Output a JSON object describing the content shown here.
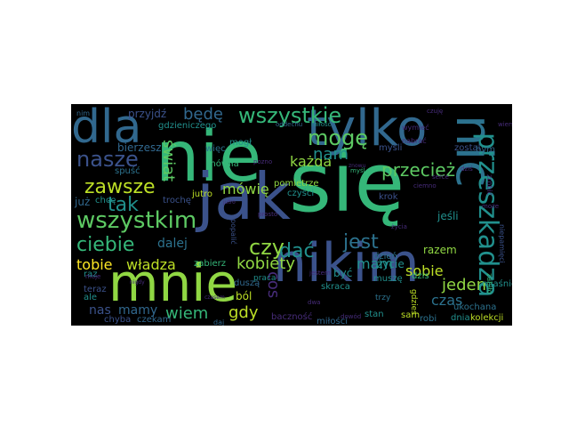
{
  "palette": [
    "#440154",
    "#3b528b",
    "#21908d",
    "#5dc963",
    "#fde725",
    "#2c728e",
    "#35b779",
    "#472c7a",
    "#90d743"
  ],
  "words": [
    {
      "text": "nie",
      "color": "#35b779"
    },
    {
      "text": "się",
      "color": "#35b779"
    },
    {
      "text": "jak",
      "color": "#3b528b"
    },
    {
      "text": "tylko",
      "color": "#31688e"
    },
    {
      "text": "nikim",
      "color": "#3b528b"
    },
    {
      "text": "mnie",
      "color": "#90d743"
    },
    {
      "text": "dla",
      "color": "#31688e"
    },
    {
      "text": "nic",
      "color": "#2c728e"
    },
    {
      "text": "przeszkadza",
      "color": "#21908d"
    },
    {
      "text": "wszystkim",
      "color": "#5dc963"
    },
    {
      "text": "wszystkie",
      "color": "#35b779"
    },
    {
      "text": "mogę",
      "color": "#5dc963"
    },
    {
      "text": "nasze",
      "color": "#3b528b"
    },
    {
      "text": "zawsze",
      "color": "#bddf26"
    },
    {
      "text": "tak",
      "color": "#21908d"
    },
    {
      "text": "ciebie",
      "color": "#35b779"
    },
    {
      "text": "jest",
      "color": "#2c728e"
    },
    {
      "text": "czy",
      "color": "#90d743"
    },
    {
      "text": "dać",
      "color": "#21908d"
    },
    {
      "text": "przecież",
      "color": "#5dc963"
    },
    {
      "text": "kobiety",
      "color": "#90d743"
    },
    {
      "text": "tobie",
      "color": "#fde725"
    },
    {
      "text": "władza",
      "color": "#bddf26"
    },
    {
      "text": "będę",
      "color": "#31688e"
    },
    {
      "text": "każda",
      "color": "#90d743"
    },
    {
      "text": "mówię",
      "color": "#90d743"
    },
    {
      "text": "świat",
      "color": "#5dc963"
    },
    {
      "text": "nam",
      "color": "#21908d"
    },
    {
      "text": "dalej",
      "color": "#2c728e"
    },
    {
      "text": "mam",
      "color": "#21908d"
    },
    {
      "text": "sobie",
      "color": "#bddf26"
    },
    {
      "text": "jeden",
      "color": "#90d743"
    },
    {
      "text": "czas",
      "color": "#2c728e"
    },
    {
      "text": "wiem",
      "color": "#35b779"
    },
    {
      "text": "gdy",
      "color": "#bddf26"
    },
    {
      "text": "mamy",
      "color": "#31688e"
    },
    {
      "text": "nas",
      "color": "#3b528b"
    },
    {
      "text": "cos",
      "color": "#472c7a"
    },
    {
      "text": "razem",
      "color": "#90d743"
    },
    {
      "text": "życie",
      "color": "#21908d"
    },
    {
      "text": "ból",
      "color": "#bddf26"
    },
    {
      "text": "być",
      "color": "#21908d"
    },
    {
      "text": "dzień",
      "color": "#2c728e"
    },
    {
      "text": "jeśli",
      "color": "#21908d"
    },
    {
      "text": "zostal",
      "color": "#3b528b"
    },
    {
      "text": "myśli",
      "color": "#3b528b"
    },
    {
      "text": "krok",
      "color": "#3b528b"
    },
    {
      "text": "bierzesz",
      "color": "#31688e"
    },
    {
      "text": "przyjdź",
      "color": "#3b528b"
    },
    {
      "text": "gdzieniczego",
      "color": "#21908d"
    },
    {
      "text": "mogł",
      "color": "#21908d"
    },
    {
      "text": "więc",
      "color": "#2c728e"
    },
    {
      "text": "mówiła",
      "color": "#35b779"
    },
    {
      "text": "pomietrze",
      "color": "#90d743"
    },
    {
      "text": "czyści",
      "color": "#21908d"
    },
    {
      "text": "jutro",
      "color": "#bddf26"
    },
    {
      "text": "trochę",
      "color": "#3b528b"
    },
    {
      "text": "zabierz",
      "color": "#35b779"
    },
    {
      "text": "popalić",
      "color": "#3b528b"
    },
    {
      "text": "duszą",
      "color": "#31688e"
    },
    {
      "text": "praca",
      "color": "#21908d"
    },
    {
      "text": "skraca",
      "color": "#21908d"
    },
    {
      "text": "muszę",
      "color": "#21908d"
    },
    {
      "text": "dzis",
      "color": "#35b779"
    },
    {
      "text": "miłości",
      "color": "#31688e"
    },
    {
      "text": "stan",
      "color": "#21908d"
    },
    {
      "text": "baczność",
      "color": "#472c7a"
    },
    {
      "text": "czekam",
      "color": "#31688e"
    },
    {
      "text": "chyba",
      "color": "#3b528b"
    },
    {
      "text": "teraz",
      "color": "#3b528b"
    },
    {
      "text": "ale",
      "color": "#21908d"
    },
    {
      "text": "raz",
      "color": "#21908d"
    },
    {
      "text": "już",
      "color": "#31688e"
    },
    {
      "text": "chcę",
      "color": "#21908d"
    },
    {
      "text": "spuść",
      "color": "#2c728e"
    },
    {
      "text": "daj",
      "color": "#31688e"
    },
    {
      "text": "sam",
      "color": "#bddf26"
    },
    {
      "text": "robi",
      "color": "#2c728e"
    },
    {
      "text": "dnia",
      "color": "#21908d"
    },
    {
      "text": "kolekcji",
      "color": "#bddf26"
    },
    {
      "text": "ukochana",
      "color": "#2c728e"
    },
    {
      "text": "miaśnie",
      "color": "#21908d"
    },
    {
      "text": "zrobić",
      "color": "#472c7a"
    },
    {
      "text": "bym",
      "color": "#31688e"
    },
    {
      "text": "nabrać",
      "color": "#472c7a"
    },
    {
      "text": "wymieć",
      "color": "#472c7a"
    },
    {
      "text": "oddechu",
      "color": "#31688e"
    },
    {
      "text": "miłość",
      "color": "#21908d"
    },
    {
      "text": "nim",
      "color": "#31688e"
    },
    {
      "text": "jestem",
      "color": "#472c7a"
    },
    {
      "text": "gdzieś",
      "color": "#bddf26"
    },
    {
      "text": "trzy",
      "color": "#2c728e"
    },
    {
      "text": "zabiło",
      "color": "#35b779"
    },
    {
      "text": "niepamięci",
      "color": "#3b528b"
    },
    {
      "text": "myśl",
      "color": "#35b779"
    },
    {
      "text": "dwa",
      "color": "#472c7a"
    },
    {
      "text": "dowód",
      "color": "#472c7a"
    },
    {
      "text": "znowu",
      "color": "#472c7a"
    },
    {
      "text": "czuję",
      "color": "#472c7a"
    },
    {
      "text": "moje",
      "color": "#472c7a"
    },
    {
      "text": "życia",
      "color": "#472c7a"
    },
    {
      "text": "ciemno",
      "color": "#472c7a"
    },
    {
      "text": "serce",
      "color": "#472c7a"
    },
    {
      "text": "prosto",
      "color": "#472c7a"
    },
    {
      "text": "może",
      "color": "#472c7a"
    },
    {
      "text": "wiersz",
      "color": "#472c7a"
    },
    {
      "text": "pozno",
      "color": "#472c7a"
    },
    {
      "text": "jutro",
      "color": "#472c7a"
    },
    {
      "text": "nigdy",
      "color": "#472c7a"
    },
    {
      "text": "czasem",
      "color": "#472c7a"
    },
    {
      "text": "dziś",
      "color": "#472c7a"
    }
  ]
}
